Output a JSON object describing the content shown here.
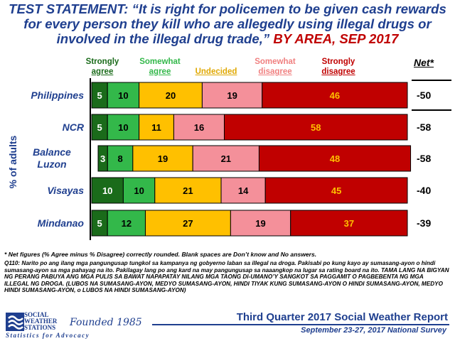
{
  "title": {
    "prefix": "TEST STATEMENT: “It is right for policemen to be given cash rewards for every person they kill who are allegedly using illegal drugs or involved in the illegal drug trade,”",
    "area": "BY AREA",
    "date": ", SEP 2017"
  },
  "y_axis_label": "% of adults",
  "net_header": "Net*",
  "colors": {
    "strongly_agree": "#1a6b1a",
    "somewhat_agree": "#33b84a",
    "undecided": "#ffc000",
    "somewhat_disagree": "#f4909a",
    "strongly_disagree": "#c00000",
    "title_blue": "#1f3f8f"
  },
  "chart_data": {
    "type": "bar",
    "orientation": "horizontal",
    "stacked": true,
    "categories": [
      "Philippines",
      "NCR",
      "Balance\nLuzon",
      "Visayas",
      "Mindanao"
    ],
    "series": [
      {
        "name": "Strongly agree",
        "values": [
          5,
          5,
          3,
          10,
          5
        ]
      },
      {
        "name": "Somewhat agree",
        "values": [
          10,
          10,
          8,
          10,
          12
        ]
      },
      {
        "name": "Undecided",
        "values": [
          20,
          11,
          19,
          21,
          27
        ]
      },
      {
        "name": "Somewhat disagree",
        "values": [
          19,
          16,
          21,
          14,
          19
        ]
      },
      {
        "name": "Strongly disagree",
        "values": [
          46,
          58,
          48,
          45,
          37
        ]
      }
    ],
    "net": [
      "-50",
      "-58",
      "-58",
      "-40",
      "-39"
    ],
    "legend_placement": "top"
  },
  "footnote": "* Net figures (% Agree minus % Disagree) correctly rounded. Blank spaces are Don’t know and No answers.",
  "question": "Q110: Narito po ang ilang mga pangungusap tungkol sa kampanya ng gobyerno laban sa illegal na droga. Pakisabi po kung kayo ay sumasang-ayon o hindi sumasang-ayon sa mga pahayag na ito. Pakilagay lang po ang kard na may pangungusap sa naaangkop na lugar sa rating board na ito. TAMA LANG NA BIGYAN NG PERANG PABUYA ANG MGA PULIS SA BAWAT NAPAPATAY NILANG MGA TAONG DI-UMANO’Y SANGKOT SA PAGGAMIT O PAGBEBENTA NG MGA ILLEGAL NG DROGA. (LUBOS NA SUMASANG-AYON, MEDYO SUMASANG-AYON, HINDI TIYAK KUNG SUMASANG-AYON O HINDI SUMASANG-AYON, MEDYO HINDI SUMASANG-AYON, o LUBOS NA HINDI SUMASANG-AYON)",
  "logo": {
    "name_line1": "SOCIAL",
    "name_line2": "WEATHER",
    "name_line3": "STATIONS",
    "founded": "Founded 1985",
    "tagline": "Statistics for Advocacy"
  },
  "report_title": "Third Quarter 2017 Social Weather Report",
  "survey_dates": "September 23-27, 2017 National Survey"
}
